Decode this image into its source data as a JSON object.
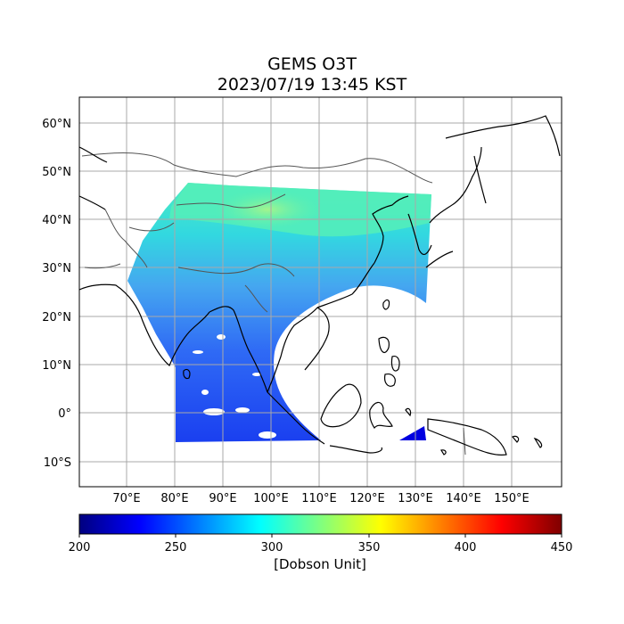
{
  "title": {
    "line1": "GEMS O3T",
    "line2": "2023/07/19 13:45 KST"
  },
  "map": {
    "lon_range": [
      60,
      160
    ],
    "lat_range": [
      -15,
      65
    ],
    "lon_ticks": [
      "70°E",
      "80°E",
      "90°E",
      "100°E",
      "110°E",
      "120°E",
      "130°E",
      "140°E",
      "150°E"
    ],
    "lat_ticks": [
      "60°N",
      "50°N",
      "40°N",
      "30°N",
      "20°N",
      "10°N",
      "0°",
      "10°S"
    ],
    "gridlines": true,
    "gridline_color": "#a9a9a9",
    "coastline_color": "#000000",
    "border_color": "#555555",
    "field_colors": {
      "tropics_deep": "#1a3ff0",
      "tropics": "#2f6af5",
      "mid": "#45a6f0",
      "subtropics": "#3cc6f0",
      "north": "#32e0d8",
      "northern_band": "#5cf0b0",
      "hotspot": "#9cf28a",
      "low_patch": "#0000e0"
    }
  },
  "colorbar": {
    "min": 200,
    "max": 450,
    "ticks": [
      "200",
      "250",
      "300",
      "350",
      "400",
      "450"
    ],
    "label": "[Dobson Unit]",
    "colormap": "jet",
    "stops": [
      "#00007f",
      "#0000ff",
      "#007fff",
      "#00ffff",
      "#7fff7f",
      "#ffff00",
      "#ff7f00",
      "#ff0000",
      "#7f0000"
    ]
  }
}
